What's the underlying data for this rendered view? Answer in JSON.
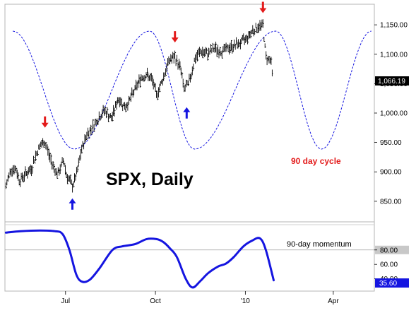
{
  "chart_data": [
    {
      "type": "line",
      "panel": "price",
      "title": "SPX, Daily",
      "series": [
        {
          "name": "",
          "kind": "ohlc-bars",
          "x": [
            "2009-05-01",
            "2009-05-06",
            "2009-05-11",
            "2009-05-15",
            "2009-05-20",
            "2009-05-27",
            "2009-06-01",
            "2009-06-05",
            "2009-06-10",
            "2009-06-12",
            "2009-06-17",
            "2009-06-23",
            "2009-06-29",
            "2009-07-02",
            "2009-07-08",
            "2009-07-13",
            "2009-07-17",
            "2009-07-23",
            "2009-07-28",
            "2009-08-03",
            "2009-08-10",
            "2009-08-17",
            "2009-08-24",
            "2009-08-31",
            "2009-09-04",
            "2009-09-10",
            "2009-09-16",
            "2009-09-22",
            "2009-09-28",
            "2009-10-02",
            "2009-10-08",
            "2009-10-15",
            "2009-10-21",
            "2009-10-27",
            "2009-10-30",
            "2009-11-04",
            "2009-11-10",
            "2009-11-16",
            "2009-11-23",
            "2009-11-30",
            "2009-12-07",
            "2009-12-14",
            "2009-12-21",
            "2009-12-28",
            "2010-01-04",
            "2010-01-08",
            "2010-01-13",
            "2010-01-19",
            "2010-01-22",
            "2010-01-27",
            "2010-01-29"
          ],
          "values": [
            875,
            905,
            905,
            885,
            895,
            905,
            930,
            945,
            950,
            940,
            915,
            895,
            920,
            895,
            875,
            900,
            935,
            965,
            975,
            990,
            1005,
            990,
            1025,
            1010,
            1020,
            1040,
            1060,
            1065,
            1055,
            1030,
            1055,
            1090,
            1095,
            1075,
            1040,
            1050,
            1090,
            1105,
            1100,
            1110,
            1105,
            1110,
            1115,
            1120,
            1130,
            1140,
            1145,
            1150,
            1095,
            1090,
            1060
          ],
          "last_value_label": "1,066.19"
        },
        {
          "name": "90 day cycle",
          "kind": "dashed-sine",
          "cycle_days": 90,
          "peaks": [
            "2009-05-08",
            "2009-09-25",
            "2010-02-01",
            "2010-05-10"
          ],
          "troughs": [
            "2009-07-10",
            "2009-11-10",
            "2010-03-20"
          ]
        }
      ],
      "markers": [
        {
          "type": "top",
          "date": "2009-06-10",
          "value": 975,
          "color": "#e31b1b"
        },
        {
          "type": "bottom",
          "date": "2009-07-08",
          "value": 855,
          "color": "#1515e0"
        },
        {
          "type": "top",
          "date": "2009-10-21",
          "value": 1120,
          "color": "#e31b1b"
        },
        {
          "type": "bottom",
          "date": "2009-11-02",
          "value": 1010,
          "color": "#1515e0"
        },
        {
          "type": "top",
          "date": "2010-01-19",
          "value": 1170,
          "color": "#e31b1b"
        }
      ],
      "annotations": [
        {
          "text": "90 day cycle",
          "date": "2010-02-27",
          "value": 938,
          "color": "#e31b1b"
        }
      ],
      "y_ticks": [
        "1,150.00",
        "1,100.00",
        "1,050.00",
        "1,000.00",
        "950.00",
        "900.00",
        "850.00"
      ],
      "y_tick_values": [
        1150,
        1100,
        1050,
        1000,
        950,
        900,
        850
      ],
      "ylim": [
        815,
        1185
      ],
      "grid": false
    },
    {
      "type": "line",
      "panel": "momentum",
      "series": [
        {
          "name": "90-day momentum",
          "color": "#1515e0",
          "x": [
            "2009-05-01",
            "2009-05-16",
            "2009-06-05",
            "2009-06-20",
            "2009-06-28",
            "2009-07-05",
            "2009-07-12",
            "2009-07-18",
            "2009-07-26",
            "2009-08-05",
            "2009-08-18",
            "2009-08-28",
            "2009-09-10",
            "2009-09-22",
            "2009-10-02",
            "2009-10-09",
            "2009-10-16",
            "2009-10-23",
            "2009-11-01",
            "2009-11-08",
            "2009-11-16",
            "2009-11-24",
            "2009-12-04",
            "2009-12-12",
            "2009-12-20",
            "2009-12-30",
            "2010-01-08",
            "2010-01-16",
            "2010-01-22",
            "2010-01-30"
          ],
          "values": [
            104,
            106,
            107,
            106,
            102,
            80,
            46,
            36,
            39,
            55,
            80,
            85,
            88,
            95,
            95,
            91,
            82,
            70,
            40,
            28,
            37,
            48,
            57,
            61,
            70,
            85,
            93,
            96,
            80,
            38
          ],
          "last_value_label": "35.60"
        }
      ],
      "y_ticks": [
        "80.00",
        "60.00",
        "40.00"
      ],
      "y_tick_values": [
        80,
        60,
        40
      ],
      "ylim": [
        23,
        115
      ]
    }
  ],
  "x_axis": {
    "ticks": [
      {
        "label": "Jul",
        "date": "2009-07-01"
      },
      {
        "label": "Oct",
        "date": "2009-10-01"
      },
      {
        "label": "'10",
        "date": "2010-01-01"
      },
      {
        "label": "Apr",
        "date": "2010-04-01"
      }
    ],
    "start": "2009-04-30",
    "end": "2010-05-13"
  },
  "colors": {
    "bars": "#000000",
    "cycle": "#1515e0",
    "momentum": "#1515e0",
    "top_arrow": "#e31b1b",
    "bottom_arrow": "#1515e0",
    "price_tag_bg": "#000000",
    "momentum_tag_bg": "#1515e0",
    "reference_tag_bg": "#c8c8c8"
  }
}
